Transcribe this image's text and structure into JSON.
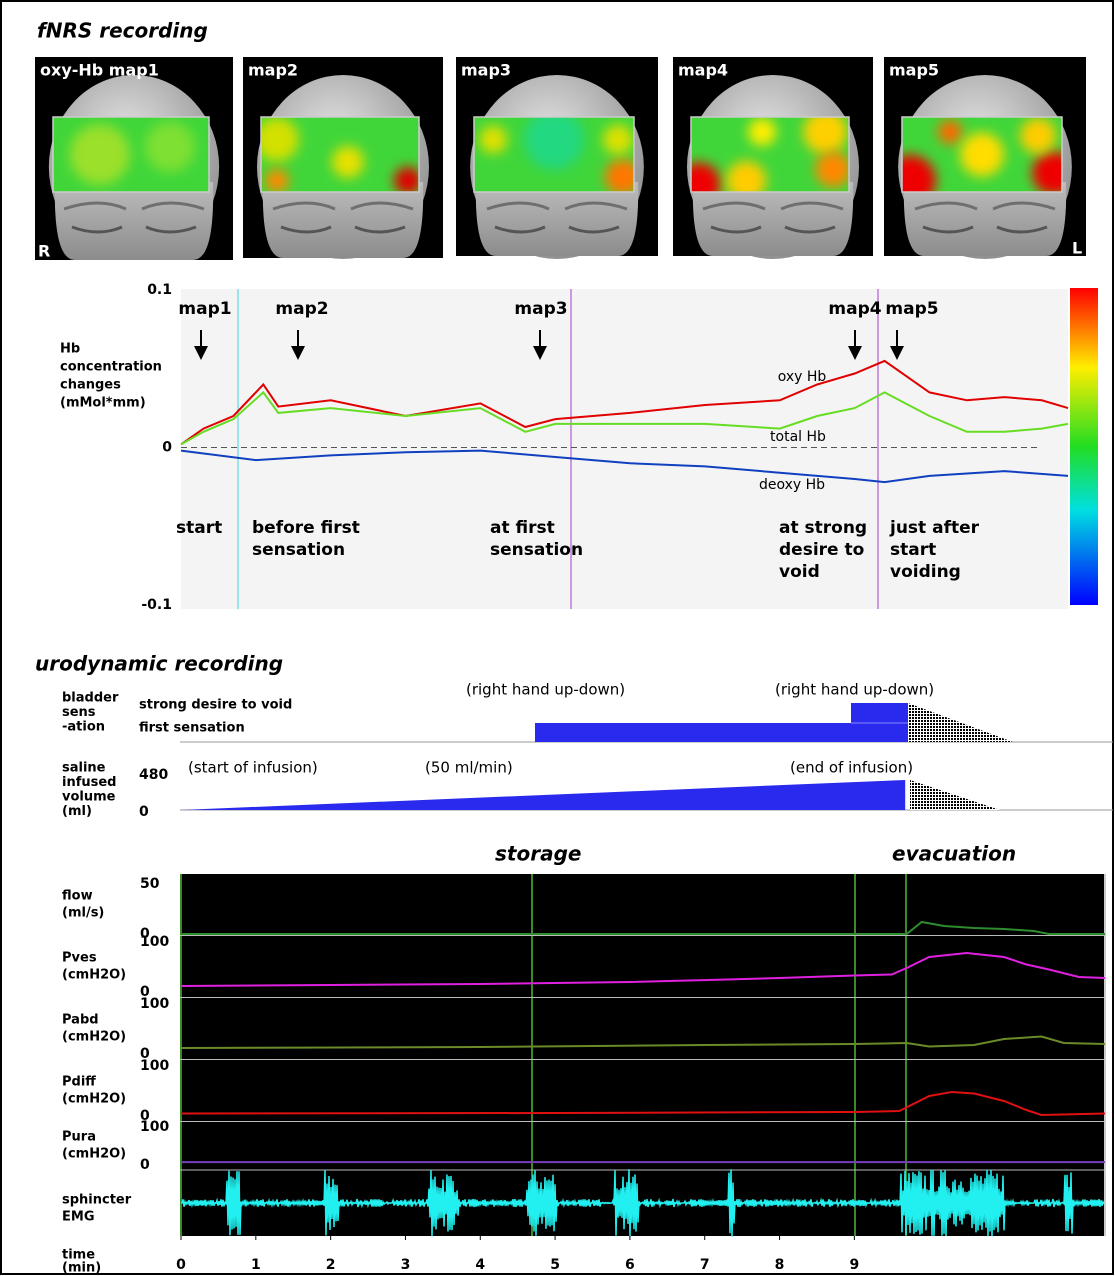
{
  "fnirs": {
    "title": "fNRS recording",
    "maps": [
      "oxy-Hb map1",
      "map2",
      "map3",
      "map4",
      "map5"
    ],
    "side_labels": [
      "R",
      "L"
    ]
  },
  "chart_data": [
    {
      "type": "line",
      "y_label": [
        "Hb",
        "concentration",
        "changes",
        "(mMol*mm)"
      ],
      "xlim": [
        0,
        11.85
      ],
      "ylim": [
        -0.1,
        0.1
      ],
      "yticks": [
        -0.1,
        0,
        0.1
      ],
      "series": [
        {
          "name": "oxy Hb",
          "color": "#e00000",
          "x": [
            0,
            0.3,
            0.7,
            1.1,
            1.3,
            2,
            3,
            4,
            4.6,
            5,
            6,
            7,
            8,
            8.5,
            9,
            9.4,
            10,
            10.5,
            11,
            11.5,
            11.85
          ],
          "values": [
            0.002,
            0.012,
            0.02,
            0.04,
            0.026,
            0.03,
            0.02,
            0.028,
            0.013,
            0.018,
            0.022,
            0.027,
            0.03,
            0.04,
            0.047,
            0.055,
            0.035,
            0.03,
            0.032,
            0.03,
            0.025
          ]
        },
        {
          "name": "total Hb",
          "color": "#66dd22",
          "x": [
            0,
            0.3,
            0.7,
            1.1,
            1.3,
            2,
            3,
            4,
            4.6,
            5,
            6,
            7,
            8,
            8.5,
            9,
            9.4,
            10,
            10.5,
            11,
            11.5,
            11.85
          ],
          "values": [
            0.002,
            0.01,
            0.018,
            0.035,
            0.022,
            0.025,
            0.02,
            0.025,
            0.01,
            0.015,
            0.015,
            0.015,
            0.012,
            0.02,
            0.025,
            0.035,
            0.02,
            0.01,
            0.01,
            0.012,
            0.015
          ]
        },
        {
          "name": "deoxy Hb",
          "color": "#1040c0",
          "x": [
            0,
            1,
            2,
            3,
            4,
            5,
            6,
            7,
            8,
            9,
            9.4,
            10,
            11,
            11.85
          ],
          "values": [
            -0.002,
            -0.008,
            -0.005,
            -0.003,
            -0.002,
            -0.006,
            -0.01,
            -0.012,
            -0.016,
            -0.02,
            -0.022,
            -0.018,
            -0.015,
            -0.018
          ]
        }
      ],
      "markers": [
        "map1",
        "map2",
        "map3",
        "map4",
        "map5"
      ],
      "events": [
        [
          "start"
        ],
        [
          "before first",
          "sensation"
        ],
        [
          "at first",
          "sensation"
        ],
        [
          "at strong",
          "desire to",
          "void"
        ],
        [
          "just after",
          "start",
          "voiding"
        ]
      ]
    },
    {
      "type": "line",
      "title": "urodynamic recording",
      "sensation": {
        "label": [
          "bladder",
          "sens",
          "-ation"
        ],
        "levels": [
          "strong desire to void",
          "first sensation"
        ],
        "notes": [
          "(right hand up-down)",
          "(right hand up-down)"
        ]
      },
      "saline": {
        "label": [
          "saline",
          "infused",
          "volume",
          "(ml)"
        ],
        "notes": [
          "(start of infusion)",
          "(50 ml/min)",
          "(end of infusion)"
        ],
        "ylim": [
          0,
          480
        ],
        "yticks": [
          0,
          480
        ],
        "x": [
          0,
          9.68
        ],
        "values": [
          0,
          480
        ],
        "color": "#2a2aee"
      },
      "phases": [
        "storage",
        "evacuation"
      ],
      "xlim": [
        0,
        12.35
      ],
      "xticks": [
        0,
        1,
        2,
        3,
        4,
        5,
        6,
        7,
        8,
        9
      ],
      "x_label": [
        "time",
        "(min)"
      ],
      "emg_label": [
        "sphincter",
        "EMG"
      ],
      "series": [
        {
          "name": "flow",
          "unit": "(ml/s)",
          "color": "#2e8b2e",
          "ylim": [
            0,
            58
          ],
          "yticks": [
            0,
            50
          ],
          "x": [
            0,
            9.7,
            9.9,
            10.2,
            10.6,
            11,
            11.4,
            11.6,
            12.35
          ],
          "values": [
            0,
            0,
            12,
            8,
            6,
            5,
            3,
            0,
            0
          ]
        },
        {
          "name": "Pves",
          "unit": "(cmH2O)",
          "color": "#e020e0",
          "ylim": [
            -10,
            110
          ],
          "yticks": [
            0,
            100
          ],
          "x": [
            0,
            2,
            4,
            6,
            7.3,
            8,
            9,
            9.5,
            9.7,
            10,
            10.5,
            11,
            11.3,
            11.6,
            12,
            12.35
          ],
          "values": [
            12,
            14,
            16,
            20,
            25,
            28,
            33,
            35,
            48,
            70,
            78,
            70,
            55,
            45,
            30,
            28
          ]
        },
        {
          "name": "Pabd",
          "unit": "(cmH2O)",
          "color": "#6b8a2a",
          "ylim": [
            -10,
            110
          ],
          "yticks": [
            0,
            100
          ],
          "x": [
            0,
            4,
            7,
            9,
            9.7,
            10,
            10.6,
            11,
            11.5,
            11.8,
            12.35
          ],
          "values": [
            12,
            14,
            18,
            20,
            22,
            15,
            18,
            30,
            35,
            22,
            20
          ]
        },
        {
          "name": "Pdiff",
          "unit": "(cmH2O)",
          "color": "#e01010",
          "ylim": [
            -10,
            110
          ],
          "yticks": [
            0,
            100
          ],
          "x": [
            0,
            5,
            9,
            9.6,
            10,
            10.3,
            10.6,
            11,
            11.3,
            11.5,
            12.35
          ],
          "values": [
            5,
            6,
            8,
            10,
            40,
            48,
            45,
            30,
            12,
            2,
            5
          ]
        },
        {
          "name": "Pura",
          "unit": "(cmH2O)",
          "color": "#7a3fbf",
          "ylim": [
            -10,
            110
          ],
          "yticks": [
            0,
            100
          ],
          "x": [
            0,
            12.35
          ],
          "values": [
            8,
            8
          ]
        }
      ]
    }
  ]
}
